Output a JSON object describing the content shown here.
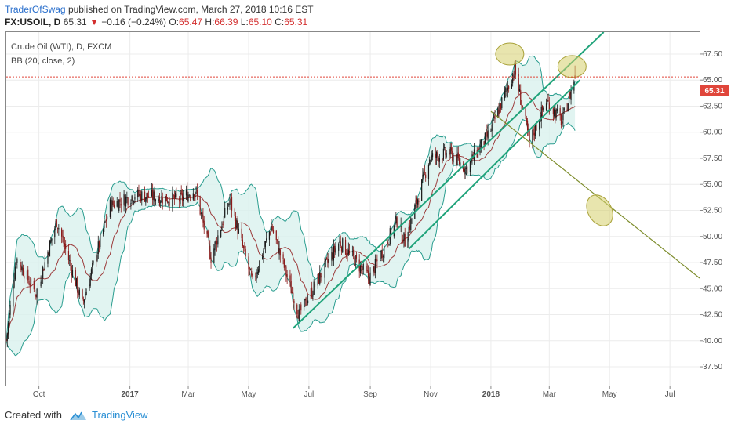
{
  "header": {
    "author": "TraderOfSwag",
    "published_text": "published on TradingView.com, March 27, 2018 10:16 EST",
    "symbol": "FX:USOIL, D",
    "last": "65.31",
    "change": "−0.16 (−0.24%)",
    "open_label": "O:",
    "open": "65.47",
    "high_label": "H:",
    "high": "66.39",
    "low_label": "L:",
    "low": "65.10",
    "close_label": "C:",
    "close": "65.31"
  },
  "legend": {
    "instrument": "Crude Oil (WTI), D, FXCM",
    "indicator": "BB (20, close, 2)"
  },
  "price_tag": "65.31",
  "footer": {
    "created_with": "Created with",
    "brand": "TradingView"
  },
  "colors": {
    "up_candle": "#1a1a1a",
    "down_candle": "#8b1a1a",
    "band_fill": "#d9f1ee",
    "band_line": "#2a9d8f",
    "basis_line": "#9c3b3b",
    "trend_green": "#1fa37a",
    "trend_olive": "#7d8c2b",
    "highlight_fill": "#d6cf6b",
    "price_line": "#e0463b"
  },
  "chart_data": {
    "type": "candlestick",
    "x_ticks": [
      "Oct",
      "2017",
      "Mar",
      "May",
      "Jul",
      "Sep",
      "Nov",
      "2018",
      "Mar",
      "May",
      "Jul"
    ],
    "y_ticks": [
      "37.50",
      "40.00",
      "42.50",
      "45.00",
      "47.50",
      "50.00",
      "52.50",
      "55.00",
      "57.50",
      "60.00",
      "62.50",
      "65.00",
      "67.50"
    ],
    "ylim": [
      35.7,
      69.6
    ],
    "date_range": [
      "2016-08-29",
      "2018-07-31"
    ],
    "last_price": 65.31,
    "price_path_keypoints": [
      [
        "2016-08-29",
        40.0
      ],
      [
        "2016-09-08",
        48.0
      ],
      [
        "2016-09-28",
        44.5
      ],
      [
        "2016-10-19",
        51.5
      ],
      [
        "2016-11-14",
        43.5
      ],
      [
        "2016-12-12",
        53.0
      ],
      [
        "2017-01-06",
        54.0
      ],
      [
        "2017-02-20",
        53.5
      ],
      [
        "2017-03-08",
        54.5
      ],
      [
        "2017-03-24",
        48.0
      ],
      [
        "2017-04-12",
        53.5
      ],
      [
        "2017-05-05",
        45.5
      ],
      [
        "2017-05-24",
        51.0
      ],
      [
        "2017-06-21",
        42.5
      ],
      [
        "2017-07-14",
        46.5
      ],
      [
        "2017-08-01",
        49.5
      ],
      [
        "2017-08-31",
        46.0
      ],
      [
        "2017-09-28",
        51.5
      ],
      [
        "2017-10-06",
        49.5
      ],
      [
        "2017-10-31",
        57.5
      ],
      [
        "2017-11-20",
        58.0
      ],
      [
        "2017-12-07",
        56.5
      ],
      [
        "2017-12-31",
        60.0
      ],
      [
        "2018-01-25",
        66.0
      ],
      [
        "2018-02-09",
        59.0
      ],
      [
        "2018-02-26",
        63.0
      ],
      [
        "2018-03-14",
        61.0
      ],
      [
        "2018-03-27",
        65.3
      ]
    ],
    "trend_lines": [
      {
        "from": [
          "2017-06-15",
          41.2
        ],
        "to": [
          "2018-04-25",
          69.6
        ],
        "color": "trend_green"
      },
      {
        "from": [
          "2017-10-10",
          48.8
        ],
        "to": [
          "2018-04-01",
          65.0
        ],
        "color": "trend_green"
      },
      {
        "from": [
          "2018-01-01",
          62.0
        ],
        "to": [
          "2018-07-31",
          46.0
        ],
        "color": "trend_olive"
      }
    ],
    "highlight_ellipses": [
      {
        "center": [
          "2018-01-20",
          67.5
        ]
      },
      {
        "center": [
          "2018-03-24",
          66.3
        ]
      },
      {
        "center": [
          "2018-04-21",
          52.5
        ]
      }
    ]
  }
}
